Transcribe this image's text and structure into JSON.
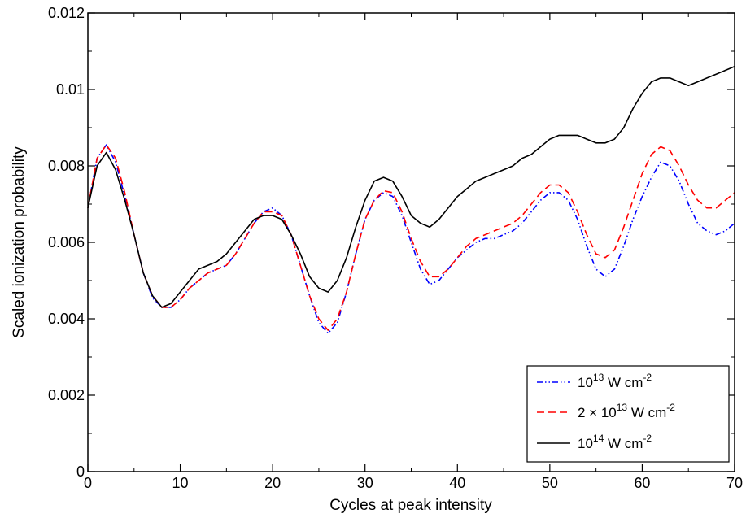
{
  "chart_data": {
    "type": "line",
    "title": "",
    "xlabel": "Cycles at peak intensity",
    "ylabel": "Scaled ionization probability",
    "xlim": [
      0,
      70
    ],
    "ylim": [
      0,
      0.012
    ],
    "x_ticks": [
      "0",
      "10",
      "20",
      "30",
      "40",
      "50",
      "60",
      "70"
    ],
    "y_ticks": [
      "0",
      "0.002",
      "0.004",
      "0.006",
      "0.008",
      "0.01",
      "0.012"
    ],
    "grid": false,
    "legend_position": "bottom-right",
    "legend": [
      {
        "pre": "10",
        "sup": "13",
        "mid": " W cm",
        "sup2": "-2"
      },
      {
        "pre": "2 × 10",
        "sup": "13",
        "mid": " W cm",
        "sup2": "-2"
      },
      {
        "pre": "10",
        "sup": "14",
        "mid": " W cm",
        "sup2": "-2"
      }
    ],
    "series": [
      {
        "color": "#0000ff",
        "dash": "dash-dot",
        "points": [
          [
            0,
            0.0069
          ],
          [
            1,
            0.0082
          ],
          [
            2,
            0.00855
          ],
          [
            3,
            0.0081
          ],
          [
            4,
            0.0072
          ],
          [
            5,
            0.0062
          ],
          [
            6,
            0.0052
          ],
          [
            7,
            0.00455
          ],
          [
            8,
            0.0043
          ],
          [
            9,
            0.0043
          ],
          [
            10,
            0.0045
          ],
          [
            11,
            0.0048
          ],
          [
            12,
            0.005
          ],
          [
            13,
            0.0052
          ],
          [
            14,
            0.0053
          ],
          [
            15,
            0.0054
          ],
          [
            16,
            0.0057
          ],
          [
            17,
            0.0061
          ],
          [
            18,
            0.0065
          ],
          [
            19,
            0.0068
          ],
          [
            20,
            0.0069
          ],
          [
            21,
            0.0067
          ],
          [
            22,
            0.0062
          ],
          [
            23,
            0.0054
          ],
          [
            24,
            0.0046
          ],
          [
            25,
            0.0039
          ],
          [
            26,
            0.00362
          ],
          [
            27,
            0.0039
          ],
          [
            28,
            0.0047
          ],
          [
            29,
            0.0057
          ],
          [
            30,
            0.0066
          ],
          [
            31,
            0.0071
          ],
          [
            32,
            0.0073
          ],
          [
            33,
            0.0072
          ],
          [
            34,
            0.0067
          ],
          [
            35,
            0.006
          ],
          [
            36,
            0.0053
          ],
          [
            37,
            0.0049
          ],
          [
            38,
            0.005
          ],
          [
            39,
            0.0053
          ],
          [
            40,
            0.0056
          ],
          [
            41,
            0.0058
          ],
          [
            42,
            0.006
          ],
          [
            43,
            0.0061
          ],
          [
            44,
            0.0061
          ],
          [
            45,
            0.0062
          ],
          [
            46,
            0.0063
          ],
          [
            47,
            0.0065
          ],
          [
            48,
            0.0068
          ],
          [
            49,
            0.0071
          ],
          [
            50,
            0.0073
          ],
          [
            51,
            0.0073
          ],
          [
            52,
            0.0071
          ],
          [
            53,
            0.0066
          ],
          [
            54,
            0.0059
          ],
          [
            55,
            0.0053
          ],
          [
            56,
            0.0051
          ],
          [
            57,
            0.0053
          ],
          [
            58,
            0.0059
          ],
          [
            59,
            0.0066
          ],
          [
            60,
            0.0072
          ],
          [
            61,
            0.0077
          ],
          [
            62,
            0.0081
          ],
          [
            63,
            0.008
          ],
          [
            64,
            0.0076
          ],
          [
            65,
            0.007
          ],
          [
            66,
            0.0065
          ],
          [
            67,
            0.0063
          ],
          [
            68,
            0.0062
          ],
          [
            69,
            0.0063
          ],
          [
            70,
            0.0065
          ]
        ]
      },
      {
        "color": "#ff0000",
        "dash": "dashed",
        "points": [
          [
            0,
            0.0069
          ],
          [
            1,
            0.0082
          ],
          [
            2,
            0.00855
          ],
          [
            3,
            0.0082
          ],
          [
            4,
            0.0073
          ],
          [
            5,
            0.0062
          ],
          [
            6,
            0.0052
          ],
          [
            7,
            0.0046
          ],
          [
            8,
            0.0043
          ],
          [
            9,
            0.0043
          ],
          [
            10,
            0.0045
          ],
          [
            11,
            0.0048
          ],
          [
            12,
            0.005
          ],
          [
            13,
            0.0052
          ],
          [
            14,
            0.0053
          ],
          [
            15,
            0.0054
          ],
          [
            16,
            0.0057
          ],
          [
            17,
            0.0061
          ],
          [
            18,
            0.0065
          ],
          [
            19,
            0.0068
          ],
          [
            20,
            0.0068
          ],
          [
            21,
            0.0067
          ],
          [
            22,
            0.0062
          ],
          [
            23,
            0.0054
          ],
          [
            24,
            0.0046
          ],
          [
            25,
            0.004
          ],
          [
            26,
            0.0037
          ],
          [
            27,
            0.004
          ],
          [
            28,
            0.0047
          ],
          [
            29,
            0.0057
          ],
          [
            30,
            0.0066
          ],
          [
            31,
            0.0071
          ],
          [
            32,
            0.00735
          ],
          [
            33,
            0.0073
          ],
          [
            34,
            0.0068
          ],
          [
            35,
            0.0061
          ],
          [
            36,
            0.0055
          ],
          [
            37,
            0.0051
          ],
          [
            38,
            0.0051
          ],
          [
            39,
            0.0053
          ],
          [
            40,
            0.0056
          ],
          [
            41,
            0.0059
          ],
          [
            42,
            0.0061
          ],
          [
            43,
            0.0062
          ],
          [
            44,
            0.0063
          ],
          [
            45,
            0.0064
          ],
          [
            46,
            0.0065
          ],
          [
            47,
            0.0067
          ],
          [
            48,
            0.007
          ],
          [
            49,
            0.0073
          ],
          [
            50,
            0.0075
          ],
          [
            51,
            0.0075
          ],
          [
            52,
            0.0073
          ],
          [
            53,
            0.0068
          ],
          [
            54,
            0.0062
          ],
          [
            55,
            0.0057
          ],
          [
            56,
            0.0056
          ],
          [
            57,
            0.0058
          ],
          [
            58,
            0.0064
          ],
          [
            59,
            0.0071
          ],
          [
            60,
            0.0078
          ],
          [
            61,
            0.0083
          ],
          [
            62,
            0.0085
          ],
          [
            63,
            0.0084
          ],
          [
            64,
            0.008
          ],
          [
            65,
            0.0075
          ],
          [
            66,
            0.0071
          ],
          [
            67,
            0.0069
          ],
          [
            68,
            0.0069
          ],
          [
            69,
            0.0071
          ],
          [
            70,
            0.0073
          ]
        ]
      },
      {
        "color": "#000000",
        "dash": "solid",
        "points": [
          [
            0,
            0.0069
          ],
          [
            1,
            0.008
          ],
          [
            2,
            0.00835
          ],
          [
            3,
            0.0079
          ],
          [
            4,
            0.0071
          ],
          [
            5,
            0.0062
          ],
          [
            6,
            0.0052
          ],
          [
            7,
            0.0046
          ],
          [
            8,
            0.0043
          ],
          [
            9,
            0.0044
          ],
          [
            10,
            0.0047
          ],
          [
            11,
            0.005
          ],
          [
            12,
            0.0053
          ],
          [
            13,
            0.0054
          ],
          [
            14,
            0.0055
          ],
          [
            15,
            0.0057
          ],
          [
            16,
            0.006
          ],
          [
            17,
            0.0063
          ],
          [
            18,
            0.0066
          ],
          [
            19,
            0.0067
          ],
          [
            20,
            0.0067
          ],
          [
            21,
            0.0066
          ],
          [
            22,
            0.0062
          ],
          [
            23,
            0.0057
          ],
          [
            24,
            0.0051
          ],
          [
            25,
            0.0048
          ],
          [
            26,
            0.0047
          ],
          [
            27,
            0.005
          ],
          [
            28,
            0.0056
          ],
          [
            29,
            0.0064
          ],
          [
            30,
            0.0071
          ],
          [
            31,
            0.0076
          ],
          [
            32,
            0.0077
          ],
          [
            33,
            0.0076
          ],
          [
            34,
            0.0072
          ],
          [
            35,
            0.0067
          ],
          [
            36,
            0.0065
          ],
          [
            37,
            0.0064
          ],
          [
            38,
            0.0066
          ],
          [
            39,
            0.0069
          ],
          [
            40,
            0.0072
          ],
          [
            41,
            0.0074
          ],
          [
            42,
            0.0076
          ],
          [
            43,
            0.0077
          ],
          [
            44,
            0.0078
          ],
          [
            45,
            0.0079
          ],
          [
            46,
            0.008
          ],
          [
            47,
            0.0082
          ],
          [
            48,
            0.0083
          ],
          [
            49,
            0.0085
          ],
          [
            50,
            0.0087
          ],
          [
            51,
            0.0088
          ],
          [
            52,
            0.0088
          ],
          [
            53,
            0.0088
          ],
          [
            54,
            0.0087
          ],
          [
            55,
            0.0086
          ],
          [
            56,
            0.0086
          ],
          [
            57,
            0.0087
          ],
          [
            58,
            0.009
          ],
          [
            59,
            0.0095
          ],
          [
            60,
            0.0099
          ],
          [
            61,
            0.0102
          ],
          [
            62,
            0.0103
          ],
          [
            63,
            0.0103
          ],
          [
            64,
            0.0102
          ],
          [
            65,
            0.0101
          ],
          [
            66,
            0.0102
          ],
          [
            67,
            0.0103
          ],
          [
            68,
            0.0104
          ],
          [
            69,
            0.0105
          ],
          [
            70,
            0.0106
          ]
        ]
      }
    ]
  }
}
